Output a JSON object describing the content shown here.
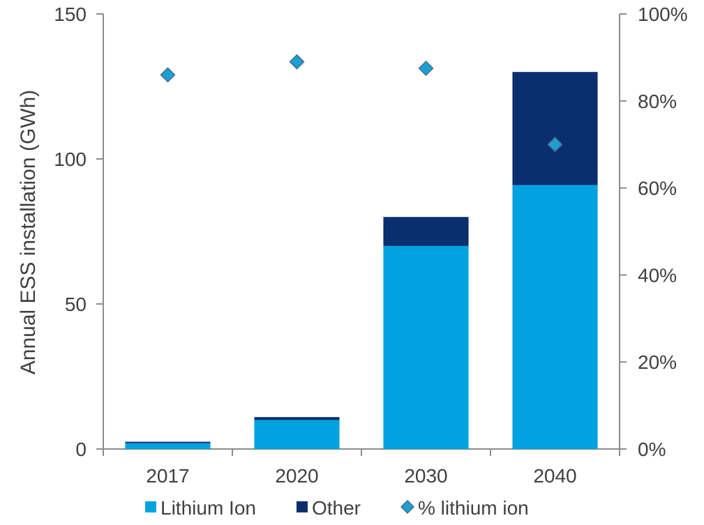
{
  "chart_data": {
    "type": "bar",
    "categories": [
      "2017",
      "2020",
      "2030",
      "2040"
    ],
    "series": [
      {
        "name": "Lithium Ion",
        "values": [
          2,
          10,
          70,
          91
        ],
        "color": "#00a3e0",
        "kind": "bar",
        "axis": "left"
      },
      {
        "name": "Other",
        "values": [
          0.5,
          1,
          10,
          39
        ],
        "color": "#0a2f6e",
        "kind": "bar",
        "axis": "left"
      },
      {
        "name": "% lithium ion",
        "values": [
          0.86,
          0.89,
          0.875,
          0.7
        ],
        "color": "#1a9fd6",
        "kind": "marker",
        "axis": "right"
      }
    ],
    "stacked": true,
    "ylabel": "Annual ESS installation (GWh)",
    "ylim": [
      0,
      150
    ],
    "yticks": [
      "0",
      "50",
      "100",
      "150"
    ],
    "y2lim": [
      0,
      1
    ],
    "y2ticks": [
      "0%",
      "20%",
      "40%",
      "60%",
      "80%",
      "100%"
    ],
    "grid": false,
    "legend_position": "bottom"
  }
}
